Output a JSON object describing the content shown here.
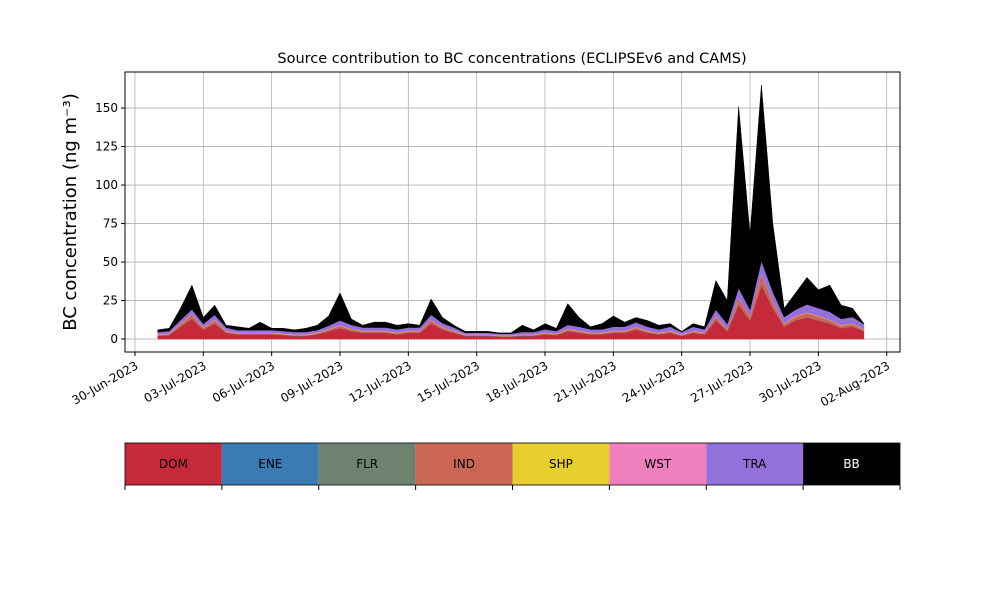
{
  "chart_data": {
    "type": "stacked_area",
    "title": "Source contribution to BC concentrations (ECLIPSEv6 and CAMS)",
    "ylabel": "BC concentration (ng m⁻³)",
    "xlim": [
      "2023-06-29 13:30",
      "2023-08-02 14:00"
    ],
    "ylim": [
      -8.4,
      173.4
    ],
    "yticks": [
      0,
      25,
      50,
      75,
      100,
      125,
      150
    ],
    "xticks": [
      {
        "value": "2023-06-30",
        "label": "30-Jun-2023"
      },
      {
        "value": "2023-07-03",
        "label": "03-Jul-2023"
      },
      {
        "value": "2023-07-06",
        "label": "06-Jul-2023"
      },
      {
        "value": "2023-07-09",
        "label": "09-Jul-2023"
      },
      {
        "value": "2023-07-12",
        "label": "12-Jul-2023"
      },
      {
        "value": "2023-07-15",
        "label": "15-Jul-2023"
      },
      {
        "value": "2023-07-18",
        "label": "18-Jul-2023"
      },
      {
        "value": "2023-07-21",
        "label": "21-Jul-2023"
      },
      {
        "value": "2023-07-24",
        "label": "24-Jul-2023"
      },
      {
        "value": "2023-07-27",
        "label": "27-Jul-2023"
      },
      {
        "value": "2023-07-30",
        "label": "30-Jul-2023"
      },
      {
        "value": "2023-08-02",
        "label": "02-Aug-2023"
      }
    ],
    "grid": true,
    "x": [
      "2023-07-01 00:00",
      "2023-07-01 12:00",
      "2023-07-02 00:00",
      "2023-07-02 12:00",
      "2023-07-03 00:00",
      "2023-07-03 12:00",
      "2023-07-04 00:00",
      "2023-07-04 12:00",
      "2023-07-05 00:00",
      "2023-07-05 12:00",
      "2023-07-06 00:00",
      "2023-07-06 12:00",
      "2023-07-07 00:00",
      "2023-07-07 12:00",
      "2023-07-08 00:00",
      "2023-07-08 12:00",
      "2023-07-09 00:00",
      "2023-07-09 12:00",
      "2023-07-10 00:00",
      "2023-07-10 12:00",
      "2023-07-11 00:00",
      "2023-07-11 12:00",
      "2023-07-12 00:00",
      "2023-07-12 12:00",
      "2023-07-13 00:00",
      "2023-07-13 12:00",
      "2023-07-14 00:00",
      "2023-07-14 12:00",
      "2023-07-15 00:00",
      "2023-07-15 12:00",
      "2023-07-16 00:00",
      "2023-07-16 12:00",
      "2023-07-17 00:00",
      "2023-07-17 12:00",
      "2023-07-18 00:00",
      "2023-07-18 12:00",
      "2023-07-19 00:00",
      "2023-07-19 12:00",
      "2023-07-20 00:00",
      "2023-07-20 12:00",
      "2023-07-21 00:00",
      "2023-07-21 12:00",
      "2023-07-22 00:00",
      "2023-07-22 12:00",
      "2023-07-23 00:00",
      "2023-07-23 12:00",
      "2023-07-24 00:00",
      "2023-07-24 12:00",
      "2023-07-25 00:00",
      "2023-07-25 12:00",
      "2023-07-26 00:00",
      "2023-07-26 12:00",
      "2023-07-27 00:00",
      "2023-07-27 12:00",
      "2023-07-28 00:00",
      "2023-07-28 12:00",
      "2023-07-29 00:00",
      "2023-07-29 12:00",
      "2023-07-30 00:00",
      "2023-07-30 12:00",
      "2023-07-31 00:00",
      "2023-07-31 12:00",
      "2023-08-01 00:00"
    ],
    "series": [
      {
        "name": "DOM",
        "color": "#c62a3a",
        "values": [
          2,
          2.5,
          8,
          13,
          6,
          10,
          4,
          3,
          3,
          3,
          3,
          2.5,
          2,
          2,
          3,
          5,
          7,
          5,
          4,
          4,
          4,
          3,
          4,
          4,
          10,
          6,
          4,
          2,
          2,
          2,
          1.5,
          1.5,
          2,
          2,
          3,
          2.5,
          5,
          4,
          3,
          3,
          4,
          4,
          6,
          4,
          3,
          4,
          2,
          4,
          3,
          12,
          5,
          22,
          12,
          35,
          20,
          8,
          12,
          14,
          12,
          10,
          7,
          8,
          5
        ]
      },
      {
        "name": "ENE",
        "color": "#3a7bb4",
        "values": [
          0.1,
          0.1,
          0.1,
          0.1,
          0.1,
          0.1,
          0.1,
          0.1,
          0.1,
          0.1,
          0.1,
          0.1,
          0.1,
          0.1,
          0.1,
          0.1,
          0.1,
          0.1,
          0.1,
          0.1,
          0.1,
          0.1,
          0.1,
          0.1,
          0.1,
          0.1,
          0.1,
          0.1,
          0.1,
          0.1,
          0.1,
          0.1,
          0.1,
          0.1,
          0.1,
          0.1,
          0.1,
          0.1,
          0.1,
          0.1,
          0.1,
          0.1,
          0.1,
          0.1,
          0.1,
          0.1,
          0.1,
          0.1,
          0.1,
          0.1,
          0.1,
          0.1,
          0.1,
          0.1,
          0.1,
          0.1,
          0.1,
          0.1,
          0.1,
          0.1,
          0.1,
          0.1,
          0.1
        ]
      },
      {
        "name": "FLR",
        "color": "#6e8270",
        "values": [
          0.1,
          0.1,
          0.1,
          0.1,
          0.1,
          0.1,
          0.1,
          0.1,
          0.1,
          0.1,
          0.1,
          0.1,
          0.1,
          0.1,
          0.1,
          0.1,
          0.1,
          0.1,
          0.1,
          0.1,
          0.1,
          0.1,
          0.1,
          0.1,
          0.1,
          0.1,
          0.1,
          0.1,
          0.1,
          0.1,
          0.1,
          0.1,
          0.1,
          0.1,
          0.1,
          0.1,
          0.1,
          0.1,
          0.1,
          0.1,
          0.1,
          0.1,
          0.1,
          0.1,
          0.1,
          0.1,
          0.1,
          0.1,
          0.1,
          0.1,
          0.1,
          0.1,
          0.1,
          0.1,
          0.1,
          0.1,
          0.1,
          0.1,
          0.1,
          0.1,
          0.1,
          0.1,
          0.1
        ]
      },
      {
        "name": "IND",
        "color": "#cc6654",
        "values": [
          0.4,
          0.5,
          1.6,
          2.6,
          1.2,
          2,
          0.8,
          0.6,
          0.6,
          0.6,
          0.6,
          0.5,
          0.4,
          0.4,
          0.6,
          1,
          1.4,
          1,
          0.8,
          0.8,
          0.8,
          0.6,
          0.8,
          0.8,
          2,
          1.2,
          0.8,
          0.4,
          0.4,
          0.4,
          0.3,
          0.3,
          0.4,
          0.4,
          0.6,
          0.5,
          1,
          0.8,
          0.6,
          0.6,
          0.8,
          0.8,
          1.2,
          0.8,
          0.6,
          0.8,
          0.4,
          0.8,
          0.6,
          2.4,
          1,
          4.4,
          2.4,
          7,
          4,
          1.6,
          2.4,
          2.8,
          2.4,
          2,
          1.4,
          1.6,
          1
        ]
      },
      {
        "name": "SHP",
        "color": "#e6cf2e",
        "values": [
          0.2,
          0.2,
          0.2,
          0.2,
          0.2,
          0.2,
          0.2,
          0.2,
          0.2,
          0.2,
          0.2,
          0.2,
          0.2,
          0.2,
          0.2,
          0.2,
          0.2,
          0.2,
          0.2,
          0.2,
          0.2,
          0.2,
          0.2,
          0.2,
          0.2,
          0.2,
          0.2,
          0.2,
          0.2,
          0.2,
          0.2,
          0.2,
          0.2,
          0.2,
          0.2,
          0.2,
          0.2,
          0.2,
          0.2,
          0.2,
          0.2,
          0.2,
          0.2,
          0.2,
          0.2,
          0.2,
          0.2,
          0.2,
          0.2,
          0.2,
          0.2,
          0.2,
          0.2,
          0.2,
          0.2,
          0.2,
          0.2,
          0.2,
          0.2,
          0.2,
          0.2,
          0.2,
          0.2
        ]
      },
      {
        "name": "WST",
        "color": "#f07fbe",
        "values": [
          0.3,
          0.3,
          0.3,
          0.3,
          0.3,
          0.3,
          0.3,
          0.3,
          0.3,
          0.3,
          0.3,
          0.3,
          0.3,
          0.3,
          0.3,
          0.3,
          0.3,
          0.3,
          0.3,
          0.3,
          0.3,
          0.3,
          0.3,
          0.3,
          0.3,
          0.3,
          0.3,
          0.3,
          0.3,
          0.3,
          0.3,
          0.3,
          0.3,
          0.3,
          0.3,
          0.3,
          0.3,
          0.3,
          0.3,
          0.3,
          0.3,
          0.3,
          0.3,
          0.3,
          0.3,
          0.3,
          0.3,
          0.3,
          0.3,
          0.3,
          0.3,
          0.3,
          0.3,
          0.3,
          0.3,
          0.3,
          0.3,
          0.3,
          0.3,
          0.3,
          0.3,
          0.3,
          0.3
        ]
      },
      {
        "name": "TRA",
        "color": "#9370db",
        "values": [
          1.5,
          1.5,
          2,
          3,
          2,
          3,
          2,
          1.5,
          1.5,
          1.5,
          1.5,
          1.5,
          1.5,
          1.5,
          1.5,
          2,
          3,
          2.5,
          2,
          2,
          2,
          2,
          2,
          2,
          3,
          2.5,
          2,
          1,
          1,
          1,
          1,
          1,
          1.5,
          1.5,
          2,
          1.5,
          2.5,
          2.5,
          2,
          2,
          2.5,
          2.5,
          3,
          2.5,
          2,
          2.5,
          1.5,
          2.5,
          2,
          4,
          3,
          6,
          4,
          8,
          6,
          4,
          4,
          5,
          5,
          5,
          4,
          4,
          3
        ]
      },
      {
        "name": "BB",
        "color": "#000000",
        "values": [
          1.4,
          1.8,
          7.7,
          15.7,
          4.1,
          6.3,
          1.5,
          2.2,
          1.2,
          5.2,
          1.2,
          1.8,
          1.4,
          2.4,
          3.2,
          6.3,
          17.9,
          3.8,
          1.5,
          3.5,
          3.5,
          2.7,
          2.5,
          1.5,
          10.3,
          3.6,
          1.5,
          0.9,
          0.9,
          0.9,
          0.5,
          0.5,
          4.4,
          1.4,
          3.7,
          1.8,
          13.8,
          6,
          1.7,
          3.7,
          7,
          3,
          3.1,
          4,
          2.7,
          2,
          0.4,
          2,
          1.7,
          18.9,
          15.3,
          117.9,
          48.9,
          114.3,
          44.3,
          5.7,
          10.9,
          17.5,
          11.9,
          17.3,
          8.9,
          5.7,
          0.3
        ]
      }
    ]
  }
}
